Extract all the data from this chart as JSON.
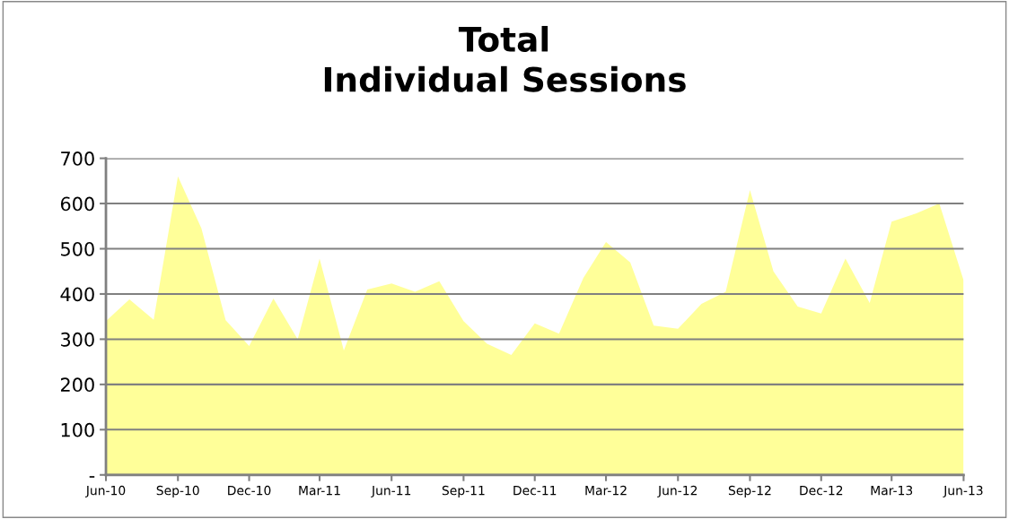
{
  "chart_data": {
    "type": "area",
    "title": "Total\nIndividual Sessions",
    "x": [
      "2010-06",
      "2010-07",
      "2010-08",
      "2010-09",
      "2010-10",
      "2010-11",
      "2010-12",
      "2011-01",
      "2011-02",
      "2011-03",
      "2011-04",
      "2011-05",
      "2011-06",
      "2011-07",
      "2011-08",
      "2011-09",
      "2011-10",
      "2011-11",
      "2011-12",
      "2012-01",
      "2012-02",
      "2012-03",
      "2012-04",
      "2012-05",
      "2012-06",
      "2012-07",
      "2012-08",
      "2012-09",
      "2012-10",
      "2012-11",
      "2012-12",
      "2013-01",
      "2013-02",
      "2013-03",
      "2013-04",
      "2013-05",
      "2013-06"
    ],
    "series": [
      {
        "color": "#ffff99",
        "values": [
          340,
          388,
          343,
          660,
          545,
          342,
          285,
          390,
          300,
          478,
          275,
          410,
          423,
          405,
          428,
          340,
          290,
          265,
          335,
          312,
          435,
          515,
          470,
          330,
          323,
          378,
          405,
          630,
          450,
          372,
          357,
          478,
          380,
          560,
          578,
          600,
          430
        ]
      }
    ],
    "xlim": [
      "2010-06",
      "2013-06"
    ],
    "xticks": [
      {
        "value": "2010-06",
        "label": "Jun-10"
      },
      {
        "value": "2010-09",
        "label": "Sep-10"
      },
      {
        "value": "2010-12",
        "label": "Dec-10"
      },
      {
        "value": "2011-03",
        "label": "Mar-11"
      },
      {
        "value": "2011-06",
        "label": "Jun-11"
      },
      {
        "value": "2011-09",
        "label": "Sep-11"
      },
      {
        "value": "2011-12",
        "label": "Dec-11"
      },
      {
        "value": "2012-03",
        "label": "Mar-12"
      },
      {
        "value": "2012-06",
        "label": "Jun-12"
      },
      {
        "value": "2012-09",
        "label": "Sep-12"
      },
      {
        "value": "2012-12",
        "label": "Dec-12"
      },
      {
        "value": "2013-03",
        "label": "Mar-13"
      },
      {
        "value": "2013-06",
        "label": "Jun-13"
      }
    ],
    "ylim": [
      0,
      700
    ],
    "yticks": [
      {
        "value": 0,
        "label": "-"
      },
      100,
      200,
      300,
      400,
      500,
      600,
      700
    ],
    "grid": "y",
    "legend": false
  }
}
